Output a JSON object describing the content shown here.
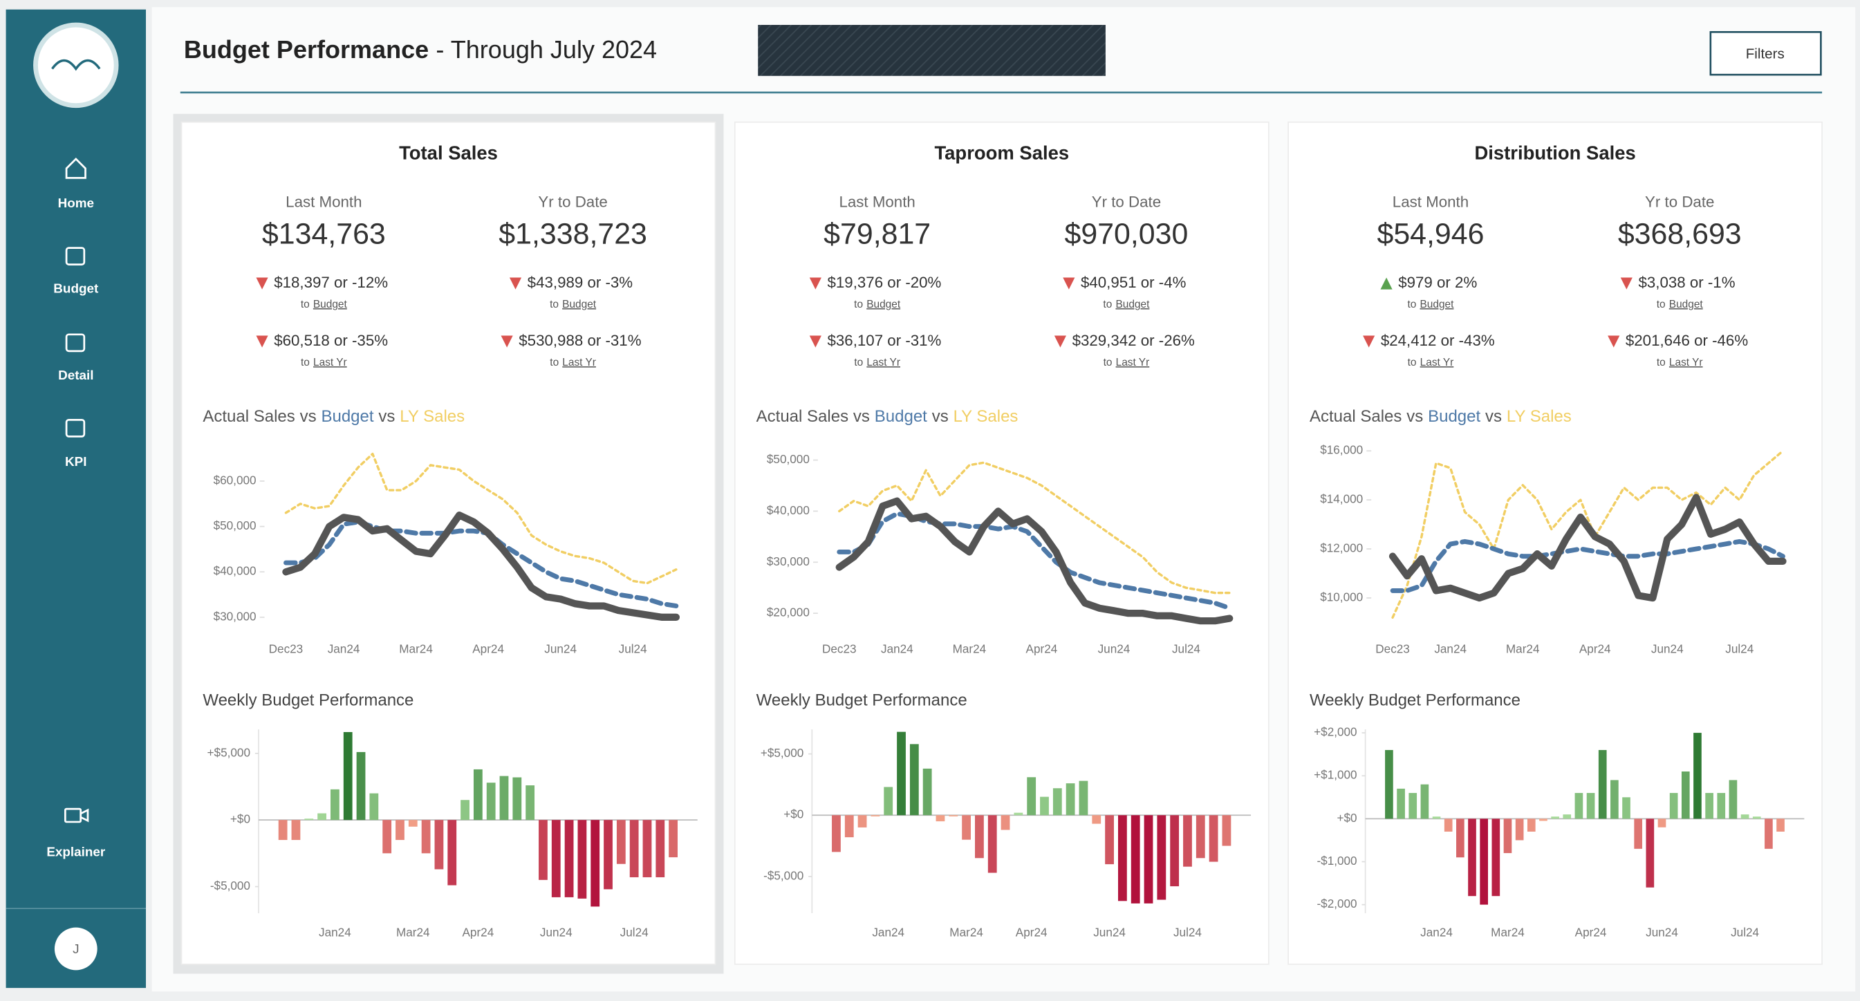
{
  "header": {
    "title": "Budget Performance",
    "subtitle": "- Through July 2024",
    "filters": "Filters"
  },
  "sidebar": {
    "nav": [
      "Home",
      "Budget",
      "Detail",
      "KPI",
      "Explainer"
    ],
    "user": "J"
  },
  "panels": [
    {
      "title": "Total Sales",
      "kpis": [
        {
          "label": "Last Month",
          "value": "$134,763",
          "comparisons": [
            {
              "direction": "down",
              "change": "$18,397 or -12%",
              "prefix": "to",
              "compare": "Budget"
            },
            {
              "direction": "down",
              "change": "$60,518 or -35%",
              "prefix": "to",
              "compare": "Last Yr"
            }
          ]
        },
        {
          "label": "Yr to Date",
          "value": "$1,338,723",
          "comparisons": [
            {
              "direction": "down",
              "change": "$43,989 or -3%",
              "prefix": "to",
              "compare": "Budget"
            },
            {
              "direction": "down",
              "change": "$530,988 or -31%",
              "prefix": "to",
              "compare": "Last Yr"
            }
          ]
        }
      ]
    },
    {
      "title": "Taproom Sales",
      "kpis": [
        {
          "label": "Last Month",
          "value": "$79,817",
          "comparisons": [
            {
              "direction": "down",
              "change": "$19,376 or -20%",
              "prefix": "to",
              "compare": "Budget"
            },
            {
              "direction": "down",
              "change": "$36,107 or -31%",
              "prefix": "to",
              "compare": "Last Yr"
            }
          ]
        },
        {
          "label": "Yr to Date",
          "value": "$970,030",
          "comparisons": [
            {
              "direction": "down",
              "change": "$40,951 or -4%",
              "prefix": "to",
              "compare": "Budget"
            },
            {
              "direction": "down",
              "change": "$329,342 or -26%",
              "prefix": "to",
              "compare": "Last Yr"
            }
          ]
        }
      ]
    },
    {
      "title": "Distribution Sales",
      "kpis": [
        {
          "label": "Last Month",
          "value": "$54,946",
          "comparisons": [
            {
              "direction": "up",
              "change": "$979 or 2%",
              "prefix": "to",
              "compare": "Budget"
            },
            {
              "direction": "down",
              "change": "$24,412 or -43%",
              "prefix": "to",
              "compare": "Last Yr"
            }
          ]
        },
        {
          "label": "Yr to Date",
          "value": "$368,693",
          "comparisons": [
            {
              "direction": "down",
              "change": "$3,038 or -1%",
              "prefix": "to",
              "compare": "Budget"
            },
            {
              "direction": "down",
              "change": "$201,646 or -46%",
              "prefix": "to",
              "compare": "Last Yr"
            }
          ]
        }
      ]
    }
  ],
  "chart_data": [
    {
      "type": "line",
      "title_connector": "vs",
      "categories": [
        "Dec23",
        null,
        null,
        null,
        "Jan24",
        null,
        null,
        null,
        null,
        "Mar24",
        null,
        null,
        null,
        null,
        "Apr24",
        null,
        null,
        null,
        null,
        "Jun24",
        null,
        null,
        null,
        null,
        "Jul24",
        null,
        null,
        null
      ],
      "series": [
        {
          "name": "Actual Sales",
          "color": "#555555",
          "line_style": "solid",
          "values": [
            40000,
            41000,
            44000,
            50000,
            52000,
            51500,
            49000,
            49500,
            47000,
            44500,
            44000,
            48000,
            52500,
            51000,
            48500,
            45000,
            41000,
            36500,
            34500,
            34000,
            33000,
            32500,
            32500,
            31500,
            31000,
            30500,
            30000,
            30000
          ]
        },
        {
          "name": "Budget",
          "color": "#4e79a7",
          "line_style": "dashed",
          "values": [
            42000,
            42000,
            43000,
            46000,
            50500,
            51000,
            50000,
            49000,
            49000,
            48500,
            48500,
            48500,
            49000,
            49000,
            48500,
            46000,
            44000,
            42000,
            40000,
            38500,
            38000,
            37000,
            36000,
            35000,
            34500,
            34000,
            33000,
            32500
          ]
        },
        {
          "name": "LY Sales",
          "color": "#f1ce63",
          "line_style": "dotted",
          "values": [
            53000,
            55000,
            54000,
            54500,
            59000,
            63000,
            66000,
            58000,
            58000,
            60000,
            63500,
            63000,
            62500,
            60000,
            58000,
            56000,
            53000,
            48000,
            46000,
            44500,
            43500,
            43000,
            42000,
            40000,
            38000,
            37500,
            39000,
            40500
          ]
        }
      ],
      "ylim": [
        27500,
        68000
      ],
      "yticks": [
        {
          "value": 30000,
          "label": "$30,000"
        },
        {
          "value": 40000,
          "label": "$40,000"
        },
        {
          "value": 50000,
          "label": "$50,000"
        },
        {
          "value": 60000,
          "label": "$60,000"
        }
      ]
    },
    {
      "type": "bar",
      "title": "Weekly Budget Performance",
      "categories": [
        null,
        null,
        null,
        null,
        "Jan24",
        null,
        null,
        null,
        null,
        null,
        "Mar24",
        null,
        null,
        null,
        null,
        "Apr24",
        null,
        null,
        null,
        null,
        null,
        "Jun24",
        null,
        null,
        null,
        null,
        null,
        "Jul24",
        null,
        null,
        null
      ],
      "values": [
        -1500,
        -1500,
        100,
        500,
        2300,
        6600,
        5100,
        2000,
        -2500,
        -1500,
        -500,
        -2500,
        -3700,
        -4900,
        1500,
        3800,
        2800,
        3300,
        3200,
        2600,
        -4500,
        -5800,
        -5800,
        -5900,
        -6500,
        -5200,
        -3300,
        -4300,
        -4300,
        -4300,
        -2800
      ],
      "colors": {
        "positive": [
          "#a9dc9c",
          "#2e7a33"
        ],
        "negative": [
          "#f6a98c",
          "#b1123c"
        ]
      },
      "ylim": [
        -7000,
        6800
      ],
      "yticks": [
        {
          "value": -5000,
          "label": "-$5,000"
        },
        {
          "value": 0,
          "label": "+$0"
        },
        {
          "value": 5000,
          "label": "+$5,000"
        }
      ]
    },
    {
      "type": "line",
      "title_connector": "vs",
      "categories": [
        "Dec23",
        null,
        null,
        null,
        "Jan24",
        null,
        null,
        null,
        null,
        "Mar24",
        null,
        null,
        null,
        null,
        "Apr24",
        null,
        null,
        null,
        null,
        "Jun24",
        null,
        null,
        null,
        null,
        "Jul24",
        null,
        null,
        null
      ],
      "series": [
        {
          "name": "Actual Sales",
          "color": "#555555",
          "line_style": "solid",
          "values": [
            29000,
            31000,
            34000,
            41000,
            42000,
            38500,
            39000,
            37000,
            34000,
            32000,
            37000,
            40000,
            37500,
            38500,
            36000,
            32000,
            26000,
            22000,
            21000,
            20500,
            20000,
            20000,
            19500,
            19500,
            19000,
            18500,
            18500,
            19000
          ]
        },
        {
          "name": "Budget",
          "color": "#4e79a7",
          "line_style": "dashed",
          "values": [
            32000,
            32000,
            33500,
            38000,
            39500,
            39000,
            38000,
            37500,
            37500,
            37000,
            37000,
            36500,
            37000,
            36000,
            33000,
            30000,
            28000,
            27000,
            26000,
            25500,
            25000,
            24500,
            24000,
            23500,
            23000,
            22500,
            22000,
            21000
          ]
        },
        {
          "name": "LY Sales",
          "color": "#f1ce63",
          "line_style": "dotted",
          "values": [
            40000,
            42000,
            41000,
            44000,
            45000,
            42000,
            48000,
            43000,
            46000,
            49000,
            49500,
            48500,
            47500,
            46500,
            45000,
            43000,
            41000,
            39000,
            37000,
            35000,
            33000,
            31000,
            28000,
            26000,
            25000,
            24500,
            24000,
            24000
          ]
        }
      ],
      "ylim": [
        17000,
        53000
      ],
      "yticks": [
        {
          "value": 20000,
          "label": "$20,000"
        },
        {
          "value": 30000,
          "label": "$30,000"
        },
        {
          "value": 40000,
          "label": "$40,000"
        },
        {
          "value": 50000,
          "label": "$50,000"
        }
      ]
    },
    {
      "type": "bar",
      "title": "Weekly Budget Performance",
      "categories": [
        null,
        null,
        null,
        null,
        "Jan24",
        null,
        null,
        null,
        null,
        null,
        "Mar24",
        null,
        null,
        null,
        null,
        "Apr24",
        null,
        null,
        null,
        null,
        null,
        "Jun24",
        null,
        null,
        null,
        null,
        null,
        "Jul24",
        null,
        null,
        null
      ],
      "values": [
        -3000,
        -1800,
        -1000,
        -100,
        2300,
        6800,
        5800,
        3800,
        -500,
        -100,
        -2000,
        -3500,
        -4700,
        -1200,
        200,
        3100,
        1500,
        2200,
        2600,
        2800,
        -700,
        -4000,
        -7000,
        -7200,
        -7200,
        -6900,
        -5800,
        -4200,
        -3500,
        -3800,
        -2500
      ],
      "colors": {
        "positive": [
          "#a9dc9c",
          "#2e7a33"
        ],
        "negative": [
          "#f6a98c",
          "#b1123c"
        ]
      },
      "ylim": [
        -8000,
        7000
      ],
      "yticks": [
        {
          "value": -5000,
          "label": "-$5,000"
        },
        {
          "value": 0,
          "label": "+$0"
        },
        {
          "value": 5000,
          "label": "+$5,000"
        }
      ]
    },
    {
      "type": "line",
      "title_connector": "vs",
      "categories": [
        "Dec23",
        null,
        null,
        null,
        "Jan24",
        null,
        null,
        null,
        null,
        "Mar24",
        null,
        null,
        null,
        null,
        "Apr24",
        null,
        null,
        null,
        null,
        "Jun24",
        null,
        null,
        null,
        null,
        "Jul24",
        null,
        null,
        null
      ],
      "series": [
        {
          "name": "Actual Sales",
          "color": "#555555",
          "line_style": "solid",
          "values": [
            11700,
            10900,
            11600,
            10300,
            10400,
            10200,
            10000,
            10200,
            11000,
            11200,
            11800,
            11300,
            12400,
            13300,
            12500,
            12200,
            11500,
            10100,
            10000,
            12400,
            13000,
            14100,
            12600,
            12800,
            13100,
            12200,
            11500,
            11500
          ]
        },
        {
          "name": "Budget",
          "color": "#4e79a7",
          "line_style": "dashed",
          "values": [
            10300,
            10300,
            10500,
            11500,
            12200,
            12300,
            12200,
            12000,
            11800,
            11700,
            11700,
            11800,
            11900,
            12000,
            11900,
            11800,
            11700,
            11700,
            11800,
            11800,
            11900,
            12000,
            12100,
            12200,
            12300,
            12200,
            12000,
            11700
          ]
        },
        {
          "name": "LY Sales",
          "color": "#f1ce63",
          "line_style": "dotted",
          "values": [
            9200,
            10500,
            12500,
            15500,
            15300,
            13500,
            13000,
            12000,
            14000,
            14600,
            14000,
            12800,
            13500,
            14000,
            12500,
            13500,
            14500,
            14000,
            14500,
            14500,
            14000,
            14300,
            13800,
            14500,
            14000,
            15000,
            15500,
            16000
          ]
        }
      ],
      "ylim": [
        8750,
        16250
      ],
      "yticks": [
        {
          "value": 10000,
          "label": "$10,000"
        },
        {
          "value": 12000,
          "label": "$12,000"
        },
        {
          "value": 14000,
          "label": "$14,000"
        },
        {
          "value": 16000,
          "label": "$16,000"
        }
      ]
    },
    {
      "type": "bar",
      "title": "Weekly Budget Performance",
      "categories": [
        null,
        null,
        null,
        null,
        "Jan24",
        null,
        null,
        null,
        null,
        null,
        "Mar24",
        null,
        null,
        null,
        null,
        null,
        null,
        "Apr24",
        null,
        null,
        null,
        null,
        null,
        "Jun24",
        null,
        null,
        null,
        null,
        null,
        null,
        "Jul24",
        null,
        null,
        null
      ],
      "values": [
        1600,
        700,
        600,
        800,
        50,
        -300,
        -900,
        -1800,
        -2000,
        -1800,
        -800,
        -500,
        -300,
        -50,
        50,
        100,
        600,
        600,
        1600,
        900,
        500,
        -700,
        -1600,
        -200,
        600,
        1100,
        2000,
        600,
        600,
        900,
        100,
        50,
        -700,
        -300
      ],
      "colors": {
        "positive": [
          "#a9dc9c",
          "#2e7a33"
        ],
        "negative": [
          "#f6a98c",
          "#b1123c"
        ]
      },
      "ylim": [
        -2200,
        2080
      ],
      "yticks": [
        {
          "value": -2000,
          "label": "-$2,000"
        },
        {
          "value": -1000,
          "label": "-$1,000"
        },
        {
          "value": 0,
          "label": "+$0"
        },
        {
          "value": 1000,
          "label": "+$1,000"
        },
        {
          "value": 2000,
          "label": "+$2,000"
        }
      ]
    }
  ]
}
